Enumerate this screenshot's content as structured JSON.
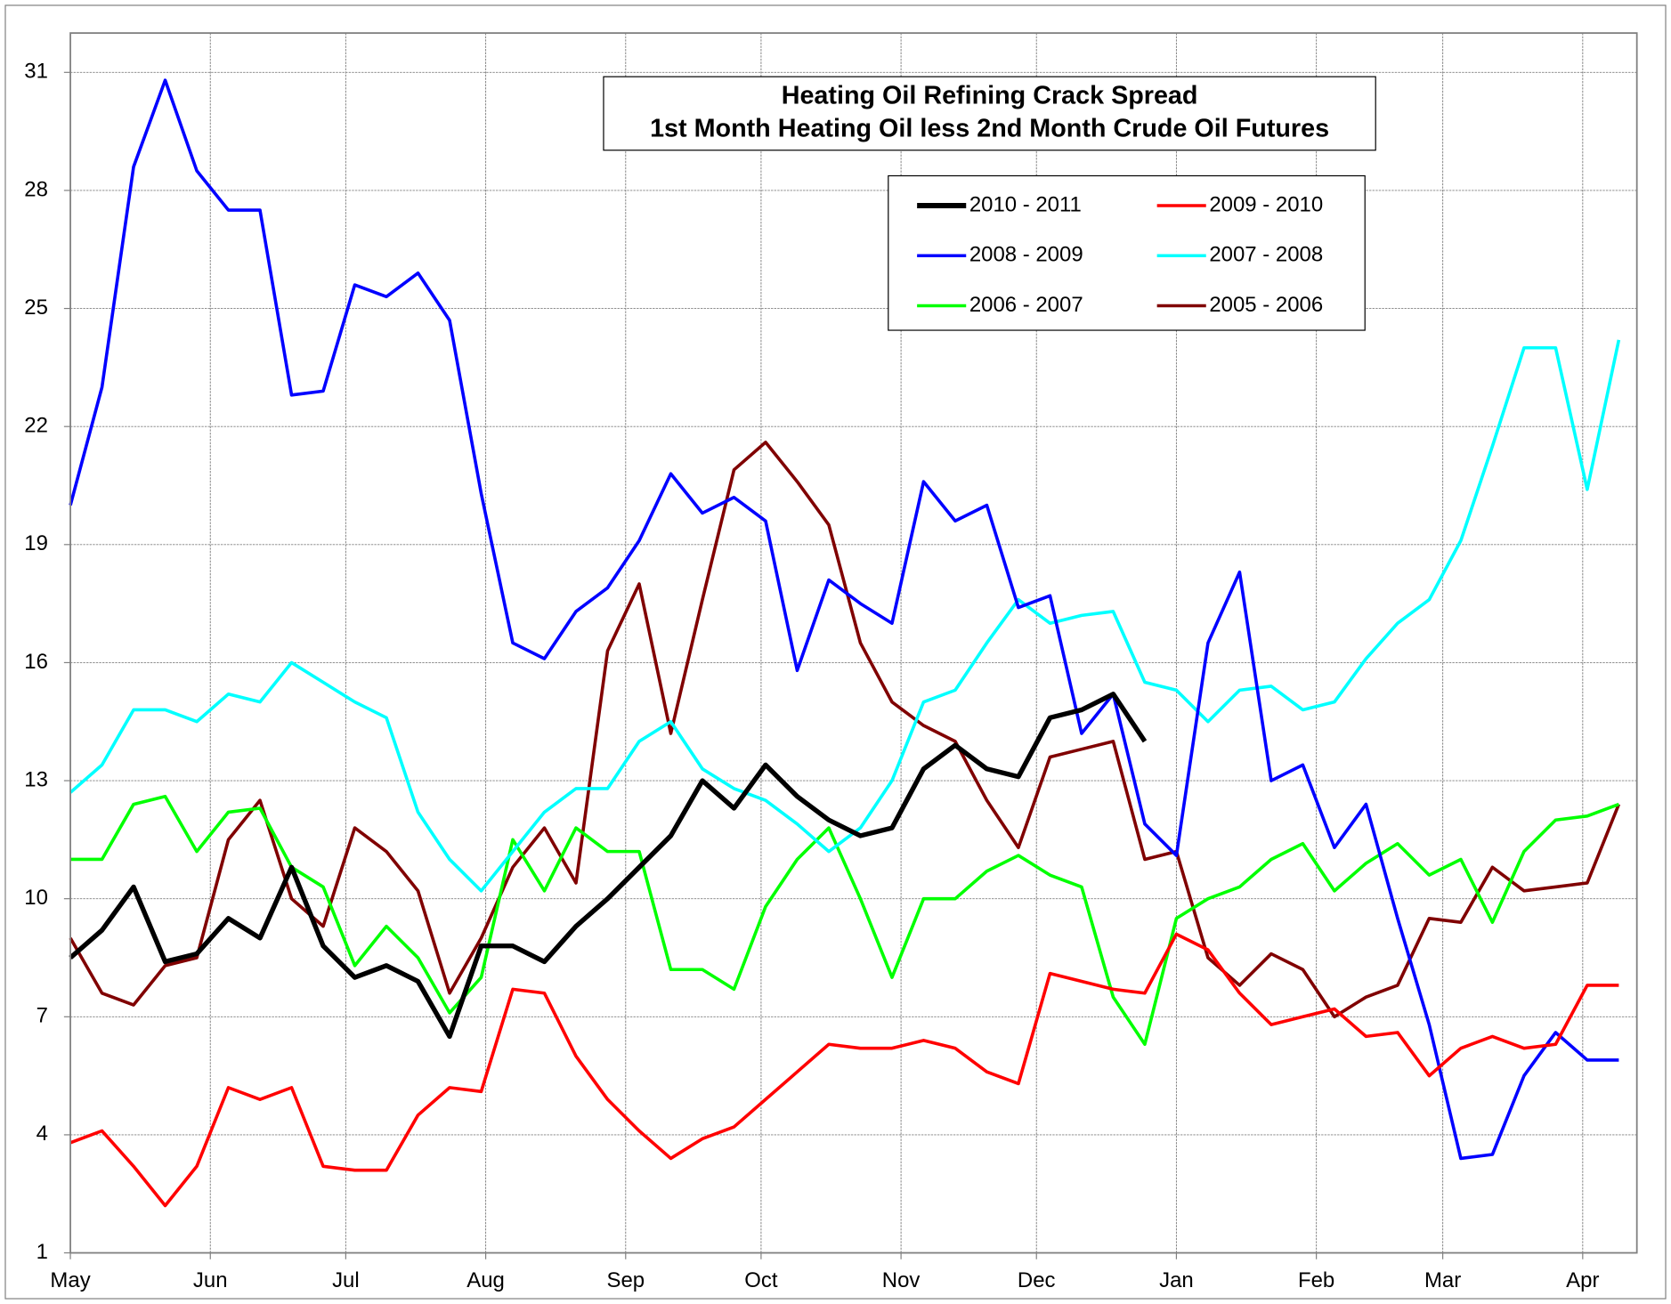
{
  "chart_data": {
    "type": "line",
    "title": "Heating Oil Refining Crack Spread",
    "subtitle": "1st Month Heating Oil less 2nd Month Crude Oil Futures",
    "x": [
      0,
      7,
      14,
      21,
      28,
      35,
      42,
      49,
      56,
      63,
      70,
      77,
      84,
      91,
      98,
      105,
      112,
      119,
      126,
      133,
      140,
      147,
      154,
      161,
      168,
      175,
      182,
      189,
      196,
      203,
      210,
      217,
      224,
      231,
      238,
      245,
      252,
      259,
      266,
      273,
      280,
      287,
      294,
      301,
      308,
      315,
      322,
      329,
      336,
      343
    ],
    "xlim": [
      0,
      347
    ],
    "xticks": [
      {
        "value": 0,
        "label": "May"
      },
      {
        "value": 31,
        "label": "Jun"
      },
      {
        "value": 61,
        "label": "Jul"
      },
      {
        "value": 92,
        "label": "Aug"
      },
      {
        "value": 123,
        "label": "Sep"
      },
      {
        "value": 153,
        "label": "Oct"
      },
      {
        "value": 184,
        "label": "Nov"
      },
      {
        "value": 214,
        "label": "Dec"
      },
      {
        "value": 245,
        "label": "Jan"
      },
      {
        "value": 276,
        "label": "Feb"
      },
      {
        "value": 304,
        "label": "Mar"
      },
      {
        "value": 335,
        "label": "Apr"
      }
    ],
    "ylim": [
      1,
      32
    ],
    "yticks": [
      1,
      4,
      7,
      10,
      13,
      16,
      19,
      22,
      25,
      28,
      31
    ],
    "grid": true,
    "legend": "top-right",
    "series": [
      {
        "name": "2010 - 2011",
        "color": "#000000",
        "values": [
          8.5,
          9.2,
          10.3,
          8.4,
          8.6,
          9.5,
          9.0,
          10.8,
          8.8,
          8.0,
          8.3,
          7.9,
          6.5,
          8.8,
          8.8,
          8.4,
          9.3,
          10.0,
          10.8,
          11.6,
          13.0,
          12.3,
          13.4,
          12.6,
          12.0,
          11.6,
          11.8,
          13.3,
          13.9,
          13.3,
          13.1,
          14.6,
          14.8,
          15.2,
          14.0,
          null,
          null,
          null,
          null,
          null,
          null,
          null,
          null,
          null,
          null,
          null,
          null,
          null,
          null,
          null
        ]
      },
      {
        "name": "2009 - 2010",
        "color": "#ff0000",
        "values": [
          3.8,
          4.1,
          3.2,
          2.2,
          3.2,
          5.2,
          4.9,
          5.2,
          3.2,
          3.1,
          3.1,
          4.5,
          5.2,
          5.1,
          7.7,
          7.6,
          6.0,
          4.9,
          4.1,
          3.4,
          3.9,
          4.2,
          4.9,
          5.6,
          6.3,
          6.2,
          6.2,
          6.4,
          6.2,
          5.6,
          5.3,
          8.1,
          7.9,
          7.7,
          7.6,
          9.1,
          8.7,
          7.6,
          6.8,
          7.0,
          7.2,
          6.5,
          6.6,
          5.5,
          6.2,
          6.5,
          6.2,
          6.3,
          7.8,
          7.8
        ]
      },
      {
        "name": "2008 - 2009",
        "color": "#0000ff",
        "values": [
          20.0,
          23.0,
          28.6,
          30.8,
          28.5,
          27.5,
          27.5,
          22.8,
          22.9,
          25.6,
          25.3,
          25.9,
          24.7,
          20.3,
          16.5,
          16.1,
          17.3,
          17.9,
          19.1,
          20.8,
          19.8,
          20.2,
          19.6,
          15.8,
          18.1,
          17.5,
          17.0,
          20.6,
          19.6,
          20.0,
          17.4,
          17.7,
          14.2,
          15.2,
          11.9,
          11.1,
          16.5,
          18.3,
          13.0,
          13.4,
          11.3,
          12.4,
          9.5,
          6.8,
          3.4,
          3.5,
          5.5,
          6.6,
          5.9,
          5.9
        ]
      },
      {
        "name": "2007 - 2008",
        "color": "#00ffff",
        "values": [
          12.7,
          13.4,
          14.8,
          14.8,
          14.5,
          15.2,
          15.0,
          16.0,
          15.5,
          15.0,
          14.6,
          12.2,
          11.0,
          10.2,
          11.2,
          12.2,
          12.8,
          12.8,
          14.0,
          14.5,
          13.3,
          12.8,
          12.5,
          11.9,
          11.2,
          11.8,
          13.0,
          15.0,
          15.3,
          16.5,
          17.6,
          17.0,
          17.2,
          17.3,
          15.5,
          15.3,
          14.5,
          15.3,
          15.4,
          14.8,
          15.0,
          16.1,
          17.0,
          17.6,
          19.1,
          21.5,
          24.0,
          24.0,
          20.4,
          24.2
        ]
      },
      {
        "name": "2006 - 2007",
        "color": "#00ff00",
        "values": [
          11.0,
          11.0,
          12.4,
          12.6,
          11.2,
          12.2,
          12.3,
          10.8,
          10.3,
          8.3,
          9.3,
          8.5,
          7.1,
          8.0,
          11.5,
          10.2,
          11.8,
          11.2,
          11.2,
          8.2,
          8.2,
          7.7,
          9.8,
          11.0,
          11.8,
          10.0,
          8.0,
          10.0,
          10.0,
          10.7,
          11.1,
          10.6,
          10.3,
          7.5,
          6.3,
          9.5,
          10.0,
          10.3,
          11.0,
          11.4,
          10.2,
          10.9,
          11.4,
          10.6,
          11.0,
          9.4,
          11.2,
          12.0,
          12.1,
          12.4
        ]
      },
      {
        "name": "2005 - 2006",
        "color": "#800000",
        "values": [
          9.0,
          7.6,
          7.3,
          8.3,
          8.5,
          11.5,
          12.5,
          10.0,
          9.3,
          11.8,
          11.2,
          10.2,
          7.6,
          9.0,
          10.8,
          11.8,
          10.4,
          16.3,
          18.0,
          14.2,
          17.6,
          20.9,
          21.6,
          20.6,
          19.5,
          16.5,
          15.0,
          14.4,
          14.0,
          12.5,
          11.3,
          13.6,
          13.8,
          14.0,
          11.0,
          11.2,
          8.5,
          7.8,
          8.6,
          8.2,
          7.0,
          7.5,
          7.8,
          9.5,
          9.4,
          10.8,
          10.2,
          10.3,
          10.4,
          12.4
        ]
      }
    ]
  }
}
